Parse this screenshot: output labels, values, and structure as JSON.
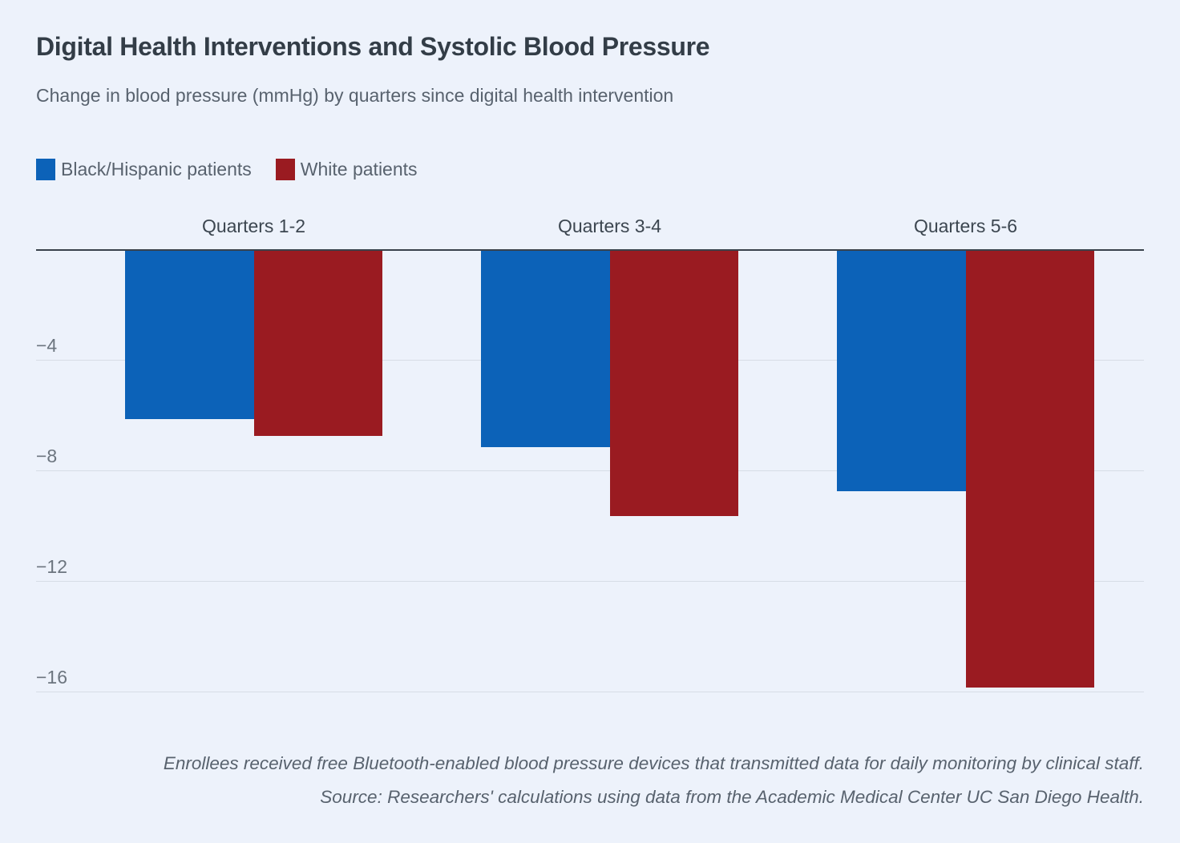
{
  "page": {
    "background": "#edf2fb"
  },
  "chart_data": {
    "type": "bar",
    "title": "Digital Health Interventions and Systolic Blood Pressure",
    "subtitle": "Change in blood pressure (mmHg) by quarters since digital health intervention",
    "categories": [
      "Quarters 1-2",
      "Quarters 3-4",
      "Quarters 5-6"
    ],
    "series": [
      {
        "name": "Black/Hispanic patients",
        "color": "#0c62b8",
        "values": [
          -6.1,
          -7.1,
          -8.7
        ]
      },
      {
        "name": "White patients",
        "color": "#9a1b21",
        "values": [
          -6.7,
          -9.6,
          -15.8
        ]
      }
    ],
    "unit": "mmHg",
    "baseline": 0,
    "yticks": [
      -4,
      -8,
      -12,
      -16
    ],
    "ylim": [
      0,
      -16.5
    ],
    "grid": true,
    "legend_position": "top-left",
    "axis_colors": {
      "zero_line": "#39414b",
      "gridline": "#d7dde6",
      "tick_text": "#6c757f"
    },
    "notes": [
      "Enrollees received free Bluetooth-enabled blood pressure devices that transmitted data for daily monitoring by clinical staff.",
      "Source: Researchers' calculations using data from the Academic Medical Center UC San Diego Health."
    ]
  }
}
